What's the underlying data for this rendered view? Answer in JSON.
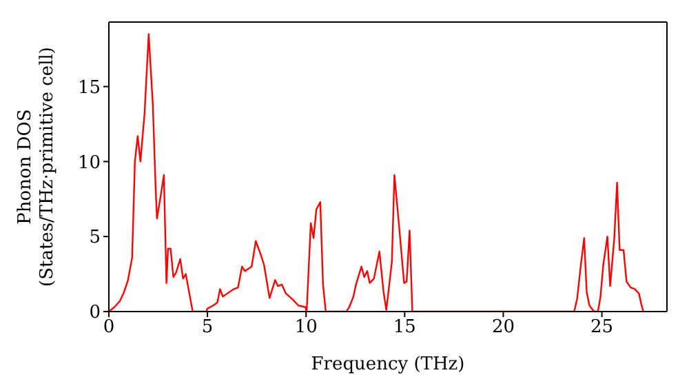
{
  "chart_data": {
    "type": "line",
    "xlabel": "Frequency (THz)",
    "ylabel": "Phonon DOS\n(States/THz·primitive cell)",
    "xlim": [
      0,
      28.3
    ],
    "ylim": [
      0,
      19.3
    ],
    "xticks": [
      0,
      5,
      10,
      15,
      20,
      25
    ],
    "yticks": [
      0,
      5,
      10,
      15
    ],
    "marker": "none",
    "line_style": "solid",
    "series": [
      {
        "color": "#ff0000",
        "x": [
          0,
          0.28,
          0.56,
          0.77,
          0.97,
          1.11,
          1.18,
          1.32,
          1.46,
          1.6,
          1.81,
          2.02,
          2.23,
          2.37,
          2.44,
          2.65,
          2.79,
          2.92,
          3.0,
          3.13,
          3.27,
          3.41,
          3.62,
          3.76,
          3.9,
          4.04,
          4.25,
          4.94,
          5.0,
          5.29,
          5.5,
          5.64,
          5.78,
          6.0,
          6.34,
          6.55,
          6.75,
          6.9,
          7.24,
          7.45,
          7.73,
          7.87,
          8.15,
          8.43,
          8.57,
          8.77,
          8.98,
          9.33,
          9.61,
          9.96,
          10.03,
          10.24,
          10.38,
          10.52,
          10.72,
          10.86,
          11.0,
          12.05,
          12.19,
          12.4,
          12.53,
          12.81,
          12.95,
          13.1,
          13.23,
          13.44,
          13.72,
          13.93,
          14.07,
          14.35,
          14.48,
          14.69,
          14.97,
          15.1,
          15.25,
          15.39,
          23.6,
          23.75,
          23.9,
          24.1,
          24.23,
          24.37,
          24.6,
          24.8,
          24.93,
          25.07,
          25.28,
          25.42,
          25.63,
          25.77,
          25.9,
          26.1,
          26.25,
          26.46,
          26.67,
          26.88,
          27.0,
          27.1
        ],
        "values": [
          0,
          0.3,
          0.7,
          1.3,
          2.1,
          3.1,
          3.6,
          10,
          11.7,
          10,
          13.2,
          18.5,
          13.8,
          8.3,
          6.2,
          7.9,
          9.1,
          1.9,
          4.2,
          4.2,
          2.3,
          2.6,
          3.5,
          2.2,
          2.5,
          1.5,
          0,
          0,
          0.2,
          0.4,
          0.6,
          1.5,
          1.0,
          1.2,
          1.5,
          1.6,
          3.0,
          2.7,
          3.0,
          4.7,
          3.7,
          3.1,
          0.9,
          2.1,
          1.7,
          1.8,
          1.2,
          0.8,
          0.4,
          0.3,
          0,
          5.9,
          4.9,
          6.8,
          7.3,
          1.8,
          0,
          0,
          0.3,
          1.0,
          1.8,
          3.0,
          2.3,
          2.7,
          1.9,
          2.2,
          4.0,
          1.3,
          0.1,
          3.3,
          9.1,
          6.1,
          1.9,
          2.0,
          5.4,
          0,
          0,
          0.9,
          2.7,
          4.9,
          1.3,
          0.4,
          0,
          0,
          1.0,
          3.1,
          5.0,
          1.7,
          4.9,
          8.6,
          4.1,
          4.1,
          2.0,
          1.6,
          1.5,
          1.2,
          0.5,
          0
        ]
      }
    ]
  }
}
